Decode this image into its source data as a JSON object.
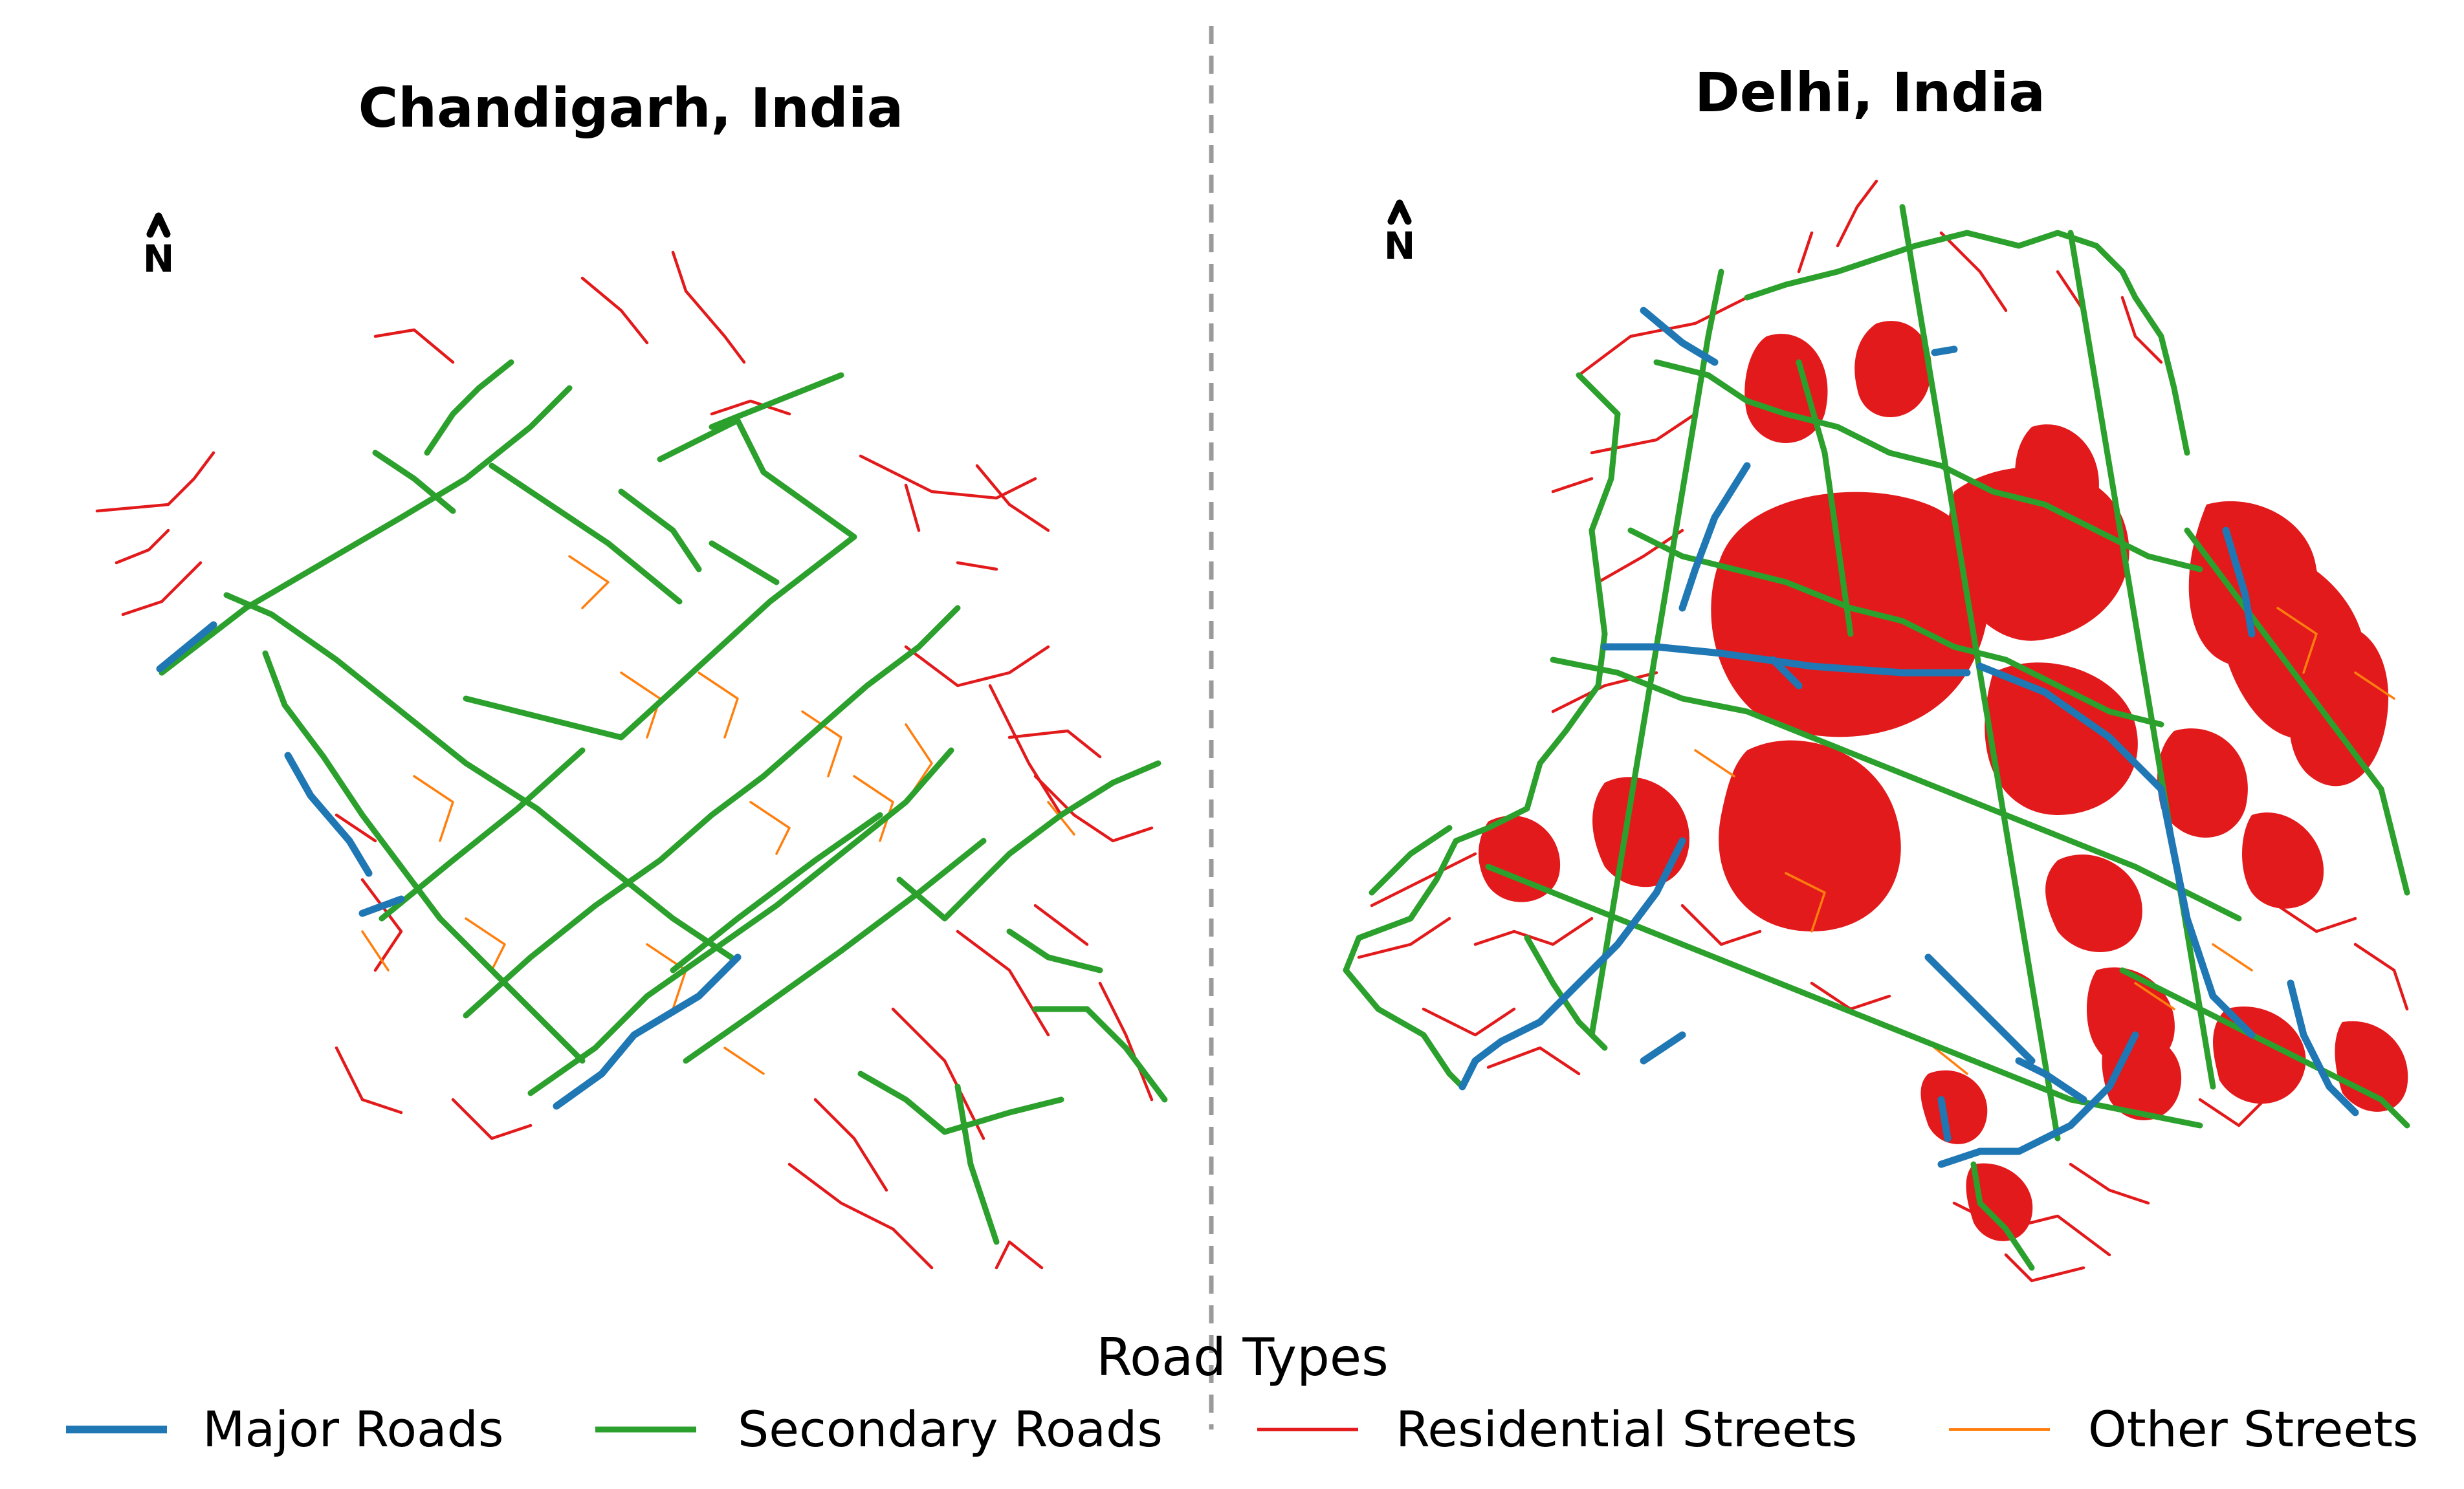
{
  "panels": [
    {
      "title": "Chandigarh, India",
      "north_label": "N"
    },
    {
      "title": "Delhi, India",
      "north_label": "N"
    }
  ],
  "legend": {
    "title": "Road Types",
    "items": [
      {
        "label": "Major Roads",
        "color": "#1f77b4"
      },
      {
        "label": "Secondary Roads",
        "color": "#2ca02c"
      },
      {
        "label": "Residential Streets",
        "color": "#e31a1c"
      },
      {
        "label": "Other Streets",
        "color": "#ff7f0e"
      }
    ]
  }
}
